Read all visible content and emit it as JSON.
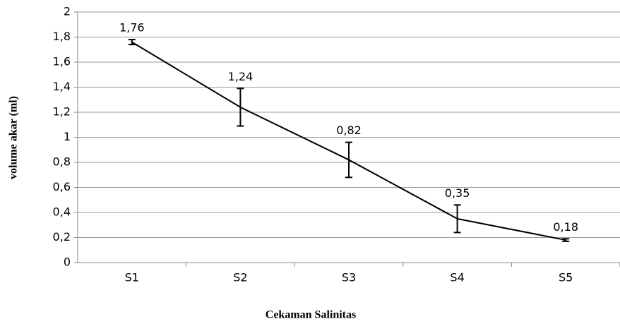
{
  "chart_data": {
    "type": "line",
    "x_label": "Cekaman Salinitas",
    "y_label": "volume akar (ml)",
    "categories": [
      "S1",
      "S2",
      "S3",
      "S4",
      "S5"
    ],
    "series": [
      {
        "name": "volume akar",
        "color": "#000000",
        "values": [
          1.76,
          1.24,
          0.82,
          0.35,
          0.18
        ],
        "value_labels": [
          "1,76",
          "1,24",
          "0,82",
          "0,35",
          "0,18"
        ],
        "errors": [
          0.02,
          0.15,
          0.14,
          0.11,
          0.01
        ]
      }
    ],
    "ylim": [
      0,
      2
    ],
    "yticks": [
      0,
      {
        "value": 0.2,
        "label": "0,2"
      },
      {
        "value": 0.4,
        "label": "0,4"
      },
      {
        "value": 0.6,
        "label": "0,6"
      },
      {
        "value": 0.8,
        "label": "0,8"
      },
      1,
      {
        "value": 1.2,
        "label": "1,2"
      },
      {
        "value": 1.4,
        "label": "1,4"
      },
      {
        "value": 1.6,
        "label": "1,6"
      },
      {
        "value": 1.8,
        "label": "1,8"
      },
      2
    ],
    "grid": true
  }
}
